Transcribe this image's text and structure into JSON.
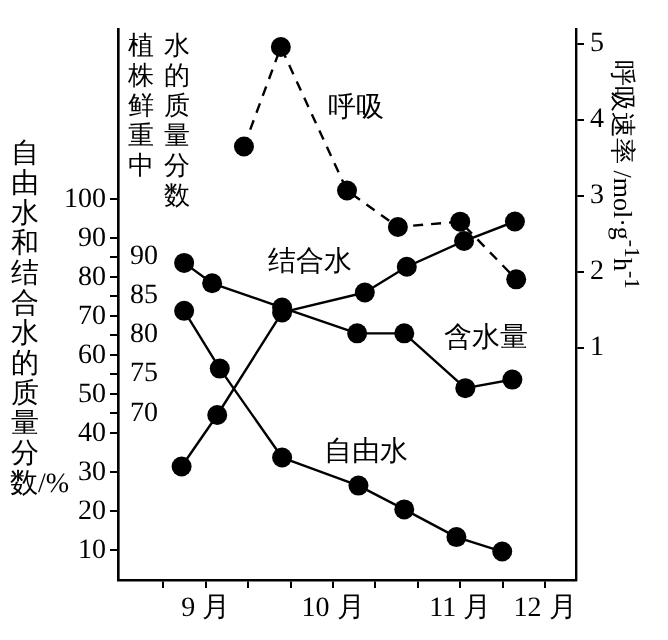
{
  "chart_data": {
    "type": "line",
    "ylabel": "自由水和结合水的质量分数/%",
    "y3label": "植株鲜重中水的质量分数",
    "y2label": "呼吸速率 /mol·g$^{-1}$h$^{-1}$",
    "xlim": [
      8.31,
      11.91
    ],
    "xticks": [
      {
        "value": 8.667,
        "label": null
      },
      {
        "value": 9,
        "label": "9 月"
      },
      {
        "value": 9.333,
        "label": null
      },
      {
        "value": 9.667,
        "label": null
      },
      {
        "value": 10,
        "label": "10 月"
      },
      {
        "value": 10.333,
        "label": null
      },
      {
        "value": 10.667,
        "label": null
      },
      {
        "value": 11,
        "label": "11 月"
      },
      {
        "value": 11.333,
        "label": null
      },
      {
        "value": 11.667,
        "label": "12 月"
      }
    ],
    "ylim": [
      2.4,
      143.7
    ],
    "yticks": [
      10,
      20,
      30,
      40,
      50,
      60,
      70,
      80,
      90,
      100
    ],
    "y3lim": [
      48.7,
      119.1
    ],
    "y3ticks": [
      70,
      75,
      80,
      85,
      90
    ],
    "y2lim": [
      -2.06,
      5.2
    ],
    "y2ticks": [
      1,
      2,
      3,
      4,
      5
    ],
    "marker": "circle",
    "grid": false,
    "legend": false,
    "series": [
      {
        "name": "自由水",
        "color": "#000000",
        "x": [
          8.83,
          9.11,
          9.6,
          10.2,
          10.56,
          10.97,
          11.33
        ],
        "values": [
          71.4,
          56.6,
          33.8,
          26.6,
          20.5,
          13.4,
          9.7
        ]
      },
      {
        "name": "结合水",
        "color": "#000000",
        "x": [
          8.81,
          9.09,
          9.6,
          10.25,
          10.58,
          11.03,
          11.43
        ],
        "values": [
          31.5,
          44.7,
          71.0,
          76.1,
          82.7,
          89.3,
          94.3
        ]
      },
      {
        "name": "含水量",
        "color": "#000000",
        "axis": "y3",
        "x": [
          8.83,
          9.05,
          9.6,
          10.19,
          10.56,
          11.04,
          11.41
        ],
        "values": [
          89.2,
          86.6,
          83.5,
          80.2,
          80.2,
          73.2,
          74.3
        ]
      },
      {
        "name": "呼吸",
        "color": "#000000",
        "axis": "y2",
        "line_style": "dashed",
        "x": [
          9.3,
          9.59,
          10.11,
          10.51,
          11.0,
          11.44
        ],
        "values": [
          3.65,
          4.96,
          3.07,
          2.59,
          2.66,
          1.9
        ]
      }
    ]
  }
}
